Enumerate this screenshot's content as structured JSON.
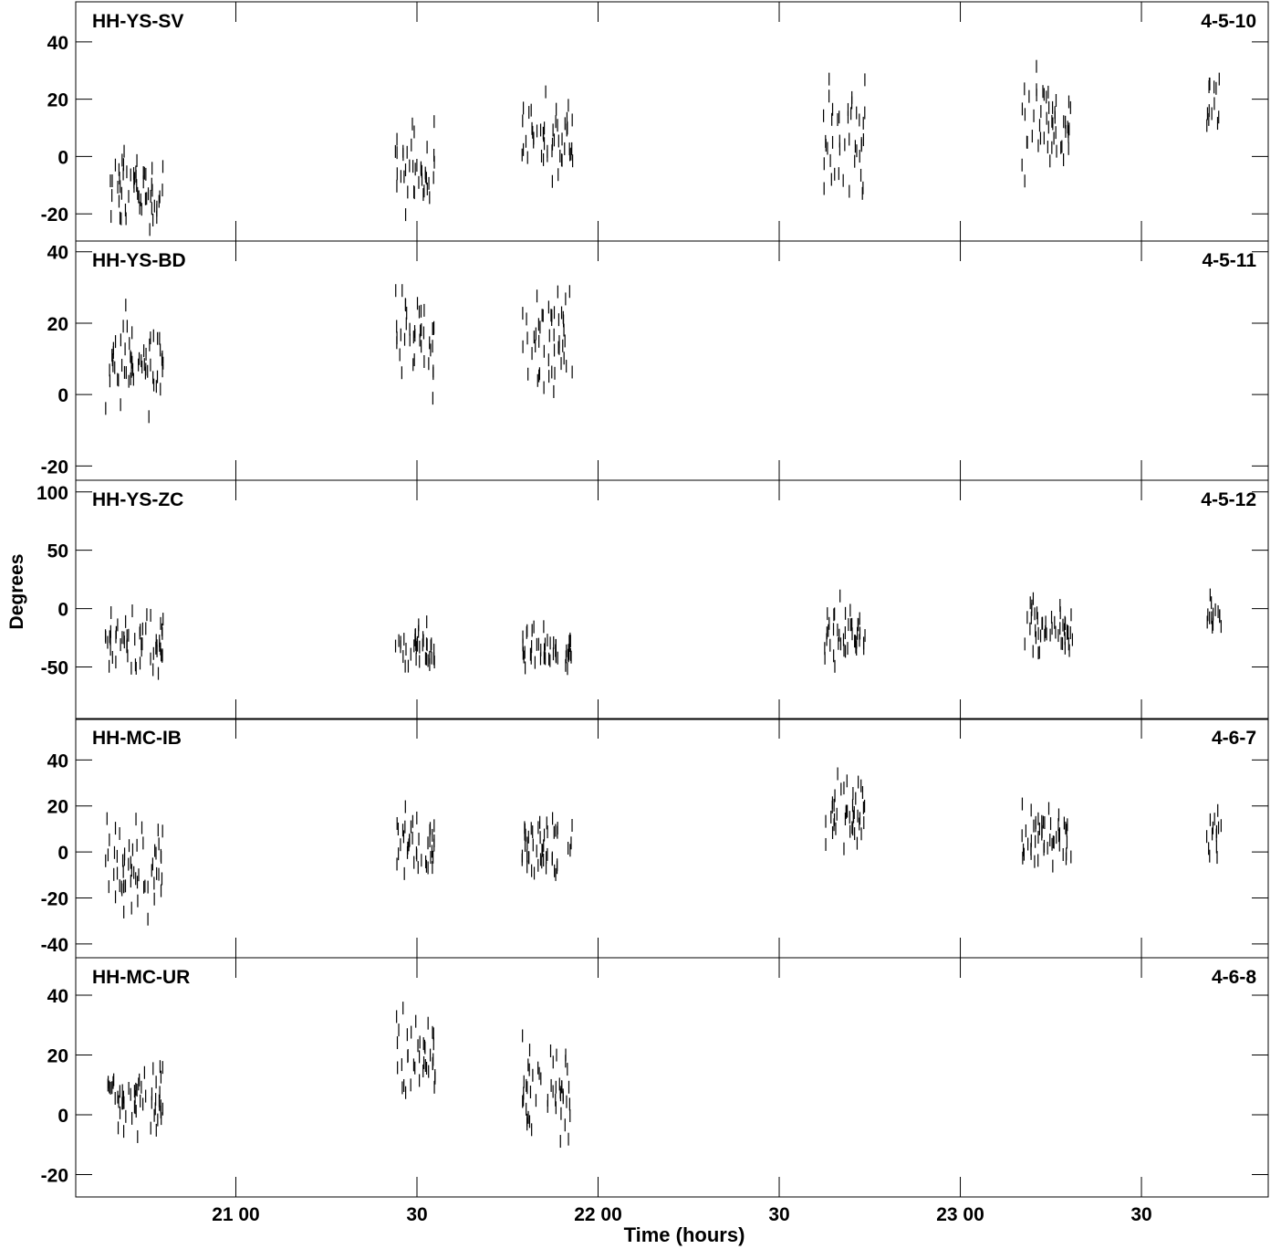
{
  "chart_data": {
    "type": "scatter",
    "xlabel": "Time (hours)",
    "ylabel": "Degrees",
    "x_tick_labels": [
      "21 00",
      "30",
      "22 00",
      "30",
      "23 00",
      "30"
    ],
    "x_ticks_hours": [
      21.0,
      21.5,
      22.0,
      22.5,
      23.0,
      23.5
    ],
    "xlim": [
      20.558,
      23.85
    ],
    "panels": [
      {
        "name": "HH-YS-SV",
        "code": "4-5-10",
        "ylim": [
          -29.5,
          54
        ],
        "yticks": [
          -20,
          0,
          20,
          40
        ],
        "scans": [
          [
            20.64,
            20.8,
            -12,
            12
          ],
          [
            21.44,
            21.55,
            -4,
            14
          ],
          [
            21.79,
            21.93,
            6,
            14
          ],
          [
            22.62,
            22.74,
            8,
            18
          ],
          [
            23.17,
            23.31,
            12,
            18
          ],
          [
            23.68,
            23.72,
            20,
            12
          ]
        ],
        "points": []
      },
      {
        "name": "HH-YS-BD",
        "code": "4-5-11",
        "ylim": [
          -24,
          43
        ],
        "yticks": [
          -20,
          0,
          20,
          40
        ],
        "scans": [
          [
            20.64,
            20.8,
            9,
            12
          ],
          [
            21.44,
            21.55,
            17,
            14
          ],
          [
            21.79,
            21.93,
            16,
            14
          ],
          [
            22.62,
            22.74,
            null,
            0
          ],
          [
            23.17,
            23.31,
            null,
            0
          ],
          [
            23.68,
            23.72,
            null,
            0
          ]
        ],
        "points": []
      },
      {
        "name": "HH-YS-ZC",
        "code": "4-5-12",
        "ylim": [
          -95,
          110
        ],
        "yticks": [
          -50,
          0,
          50,
          100
        ],
        "scans": [
          [
            20.64,
            20.8,
            -30,
            25
          ],
          [
            21.44,
            21.55,
            -35,
            20
          ],
          [
            21.79,
            21.93,
            -38,
            18
          ],
          [
            22.62,
            22.74,
            -22,
            26
          ],
          [
            23.17,
            23.31,
            -15,
            24
          ],
          [
            23.68,
            23.72,
            -5,
            15
          ]
        ],
        "points": []
      },
      {
        "name": "HH-MC-IB",
        "code": "4-6-7",
        "ylim": [
          -46,
          58
        ],
        "yticks": [
          -40,
          -20,
          0,
          20,
          40
        ],
        "scans": [
          [
            20.64,
            20.8,
            -8,
            18
          ],
          [
            21.44,
            21.55,
            4,
            14
          ],
          [
            21.79,
            21.93,
            2,
            12
          ],
          [
            22.62,
            22.74,
            18,
            14
          ],
          [
            23.17,
            23.31,
            8,
            14
          ],
          [
            23.68,
            23.72,
            6,
            14
          ]
        ],
        "points": []
      },
      {
        "name": "HH-MC-UR",
        "code": "4-6-8",
        "ylim": [
          -27.5,
          52.5
        ],
        "yticks": [
          -20,
          0,
          20,
          40
        ],
        "scans": [
          [
            20.64,
            20.8,
            6,
            13
          ],
          [
            21.44,
            21.55,
            20,
            16
          ],
          [
            21.79,
            21.93,
            8,
            16
          ],
          [
            22.62,
            22.74,
            null,
            0
          ],
          [
            23.17,
            23.31,
            null,
            0
          ],
          [
            23.68,
            23.72,
            null,
            0
          ]
        ],
        "points": []
      }
    ]
  }
}
